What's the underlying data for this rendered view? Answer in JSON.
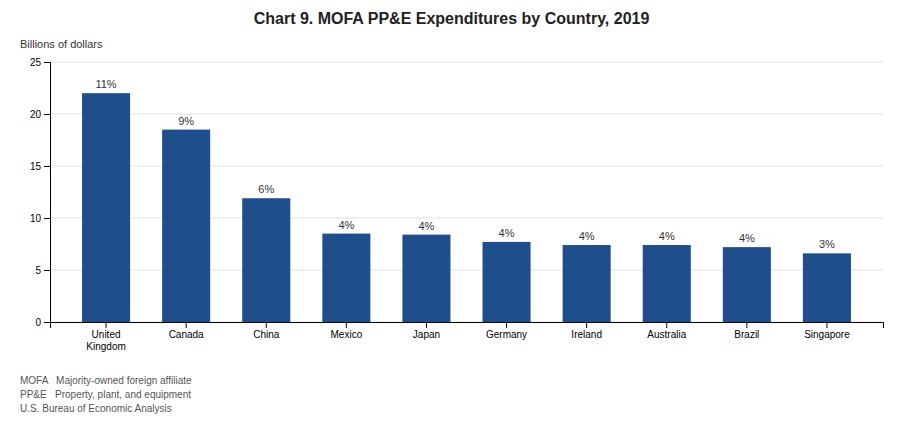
{
  "chart_data": {
    "type": "bar",
    "title": "Chart 9. MOFA PP&E Expenditures by Country, 2019",
    "ylabel": "Billions of dollars",
    "categories": [
      "United\nKingdom",
      "Canada",
      "China",
      "Mexico",
      "Japan",
      "Germany",
      "Ireland",
      "Australia",
      "Brazil",
      "Singapore"
    ],
    "values": [
      22.0,
      18.5,
      11.9,
      8.5,
      8.4,
      7.7,
      7.4,
      7.4,
      7.2,
      6.6
    ],
    "annotations": [
      "11%",
      "9%",
      "6%",
      "4%",
      "4%",
      "4%",
      "4%",
      "4%",
      "4%",
      "3%"
    ],
    "color": "#1F4E8C",
    "ylim": [
      0,
      25
    ],
    "yticks": [
      0,
      5,
      10,
      15,
      20,
      25
    ],
    "grid": true,
    "footnotes": [
      "MOFA   Majority-owned foreign affiliate",
      "PP&E   Property, plant, and equipment",
      "U.S. Bureau of Economic Analysis"
    ]
  }
}
